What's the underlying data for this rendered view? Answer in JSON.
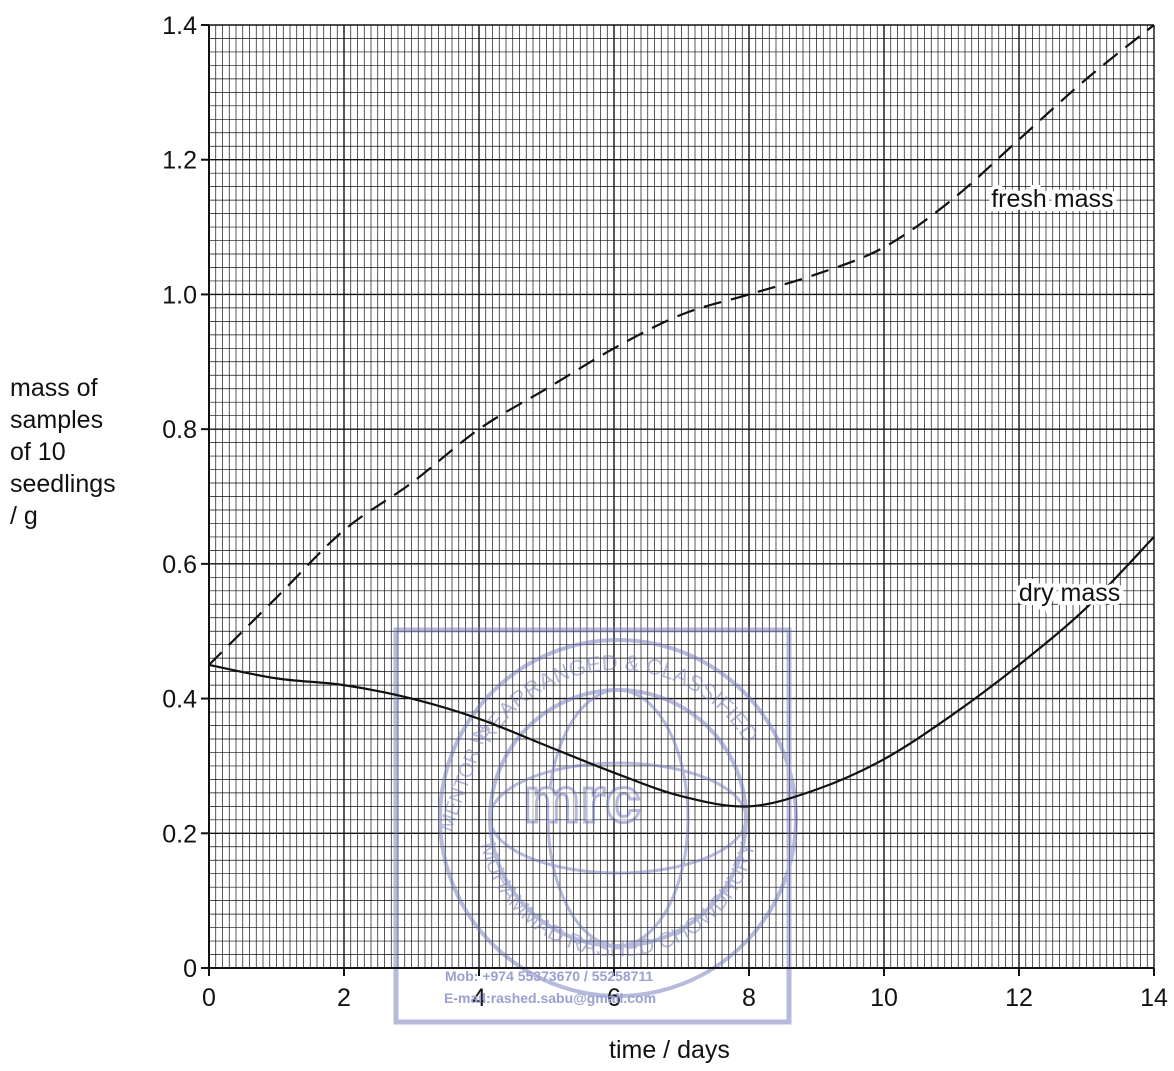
{
  "chart_data": {
    "type": "line",
    "xlabel": "time / days",
    "ylabel_lines": [
      "mass of",
      "samples",
      "of 10",
      "seedlings",
      "/ g"
    ],
    "xlim": [
      0,
      14
    ],
    "ylim": [
      0,
      1.4
    ],
    "x_ticks": [
      "0",
      "2",
      "4",
      "6",
      "8",
      "10",
      "12",
      "14"
    ],
    "y_ticks": [
      "0",
      "0.2",
      "0.4",
      "0.6",
      "0.8",
      "1.0",
      "1.2",
      "1.4"
    ],
    "grid": true,
    "series": [
      {
        "name": "fresh mass",
        "style": "dashed",
        "x": [
          0,
          1,
          2,
          3,
          4,
          5,
          6,
          7,
          8,
          9,
          10,
          11,
          12,
          13,
          14
        ],
        "y": [
          0.45,
          0.55,
          0.65,
          0.72,
          0.8,
          0.86,
          0.92,
          0.97,
          1.0,
          1.03,
          1.07,
          1.14,
          1.23,
          1.32,
          1.4
        ]
      },
      {
        "name": "dry mass",
        "style": "solid",
        "x": [
          0,
          1,
          2,
          3,
          4,
          5,
          6,
          7,
          8,
          9,
          10,
          11,
          12,
          13,
          14
        ],
        "y": [
          0.45,
          0.43,
          0.42,
          0.4,
          0.37,
          0.33,
          0.29,
          0.255,
          0.24,
          0.265,
          0.31,
          0.375,
          0.45,
          0.535,
          0.64
        ]
      }
    ]
  },
  "watermark": {
    "ring_top": "REARRANGED & CLASSIFIED",
    "ring_left": "MENTOR IN",
    "ring_bottom": "MUHAMMAD RASHED CHOWDHURY",
    "logo": "mrc",
    "mobile": "Mob:  +974 55373670 / 55258711",
    "email": "E-mail:rashed.sabu@gmail.com"
  }
}
